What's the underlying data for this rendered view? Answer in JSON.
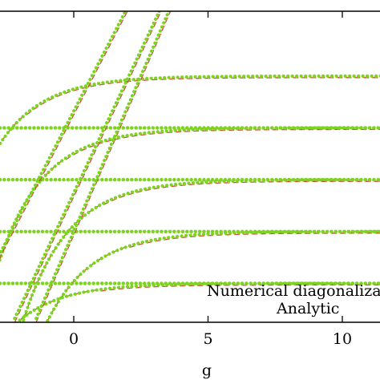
{
  "chart_data": {
    "type": "line",
    "xlabel": "g",
    "ylabel": "",
    "xlim": [
      -2.8,
      11.2
    ],
    "ylim": [
      0,
      12
    ],
    "x_ticks": [
      0,
      5,
      10
    ],
    "x_tick_labels": [
      "0",
      "5",
      "10"
    ],
    "grid": false,
    "legend_placement": "bottom-right",
    "legend": [
      {
        "label": "Numerical diagonalization",
        "style": "dotted",
        "color": "#7ed321"
      },
      {
        "label": "Analytic",
        "style": "dashed",
        "color": "#d64541"
      }
    ],
    "colors": {
      "numerical": "#7ed321",
      "analytic": "#d64541"
    },
    "flat_levels": [
      1.5,
      3.5,
      5.5,
      7.5
    ],
    "rising_series": [
      {
        "x0": -2.1,
        "asymptote": 1.5
      },
      {
        "x0": -1.0,
        "asymptote": 3.5
      },
      {
        "x0": -1.9,
        "asymptote": 5.5
      },
      {
        "x0": -3.4,
        "asymptote": 7.5
      },
      {
        "x0": -4.9,
        "asymptote": 9.5
      }
    ],
    "steep_series": [
      {
        "x0": -4.0,
        "slope": 2.0
      },
      {
        "x0": -2.2,
        "slope": 2.2
      },
      {
        "x0": -1.4,
        "slope": 2.4
      }
    ],
    "curve_rate": 0.6
  }
}
